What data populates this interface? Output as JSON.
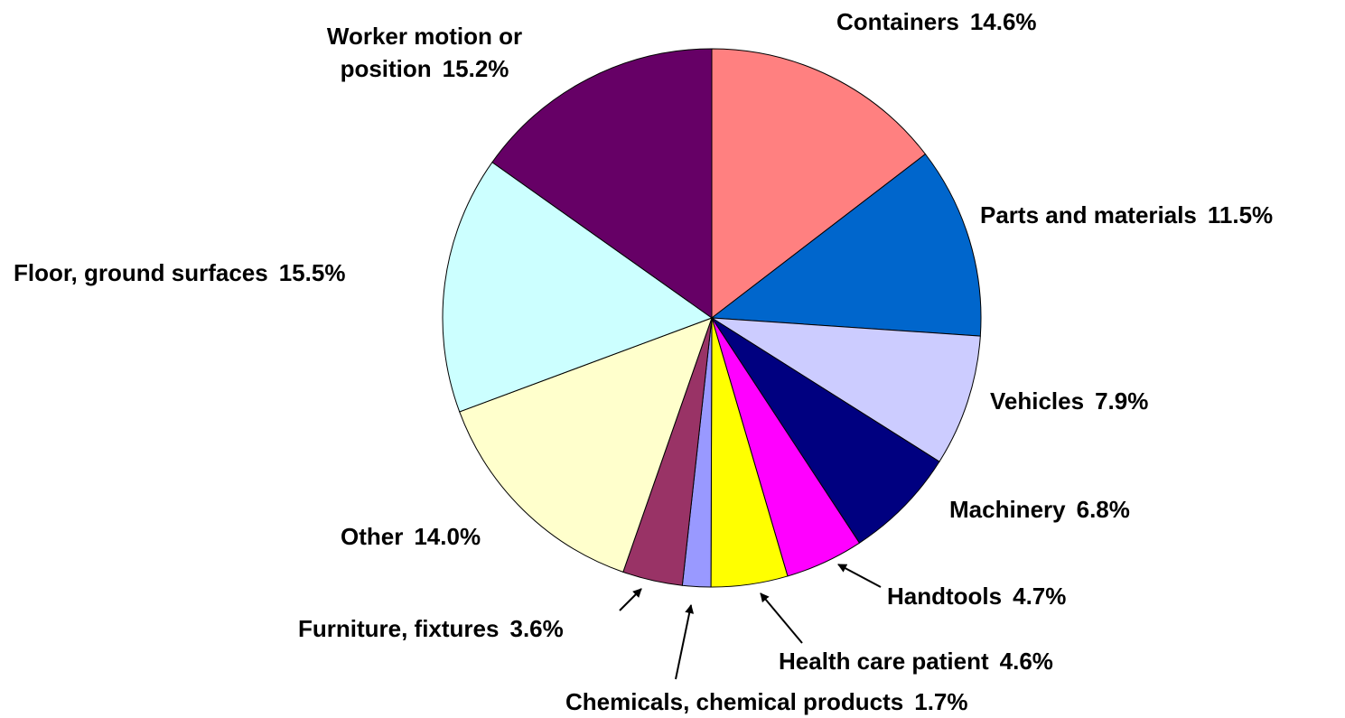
{
  "chart_data": {
    "type": "pie",
    "categories": [
      "Containers",
      "Parts and materials",
      "Vehicles",
      "Machinery",
      "Handtools",
      "Health care patient",
      "Chemicals, chemical products",
      "Furniture, fixtures",
      "Other",
      "Floor, ground surfaces",
      "Worker motion or position"
    ],
    "values": [
      14.6,
      11.5,
      7.9,
      6.8,
      4.7,
      4.6,
      1.7,
      3.6,
      14.0,
      15.5,
      15.2
    ],
    "value_labels": [
      "14.6%",
      "11.5%",
      "7.9%",
      "6.8%",
      "4.7%",
      "4.6%",
      "1.7%",
      "3.6%",
      "14.0%",
      "15.5%",
      "15.2%"
    ],
    "colors": [
      "#FF8080",
      "#0066CC",
      "#CCCCFF",
      "#000080",
      "#FF00FF",
      "#FFFF00",
      "#9999FF",
      "#993366",
      "#FFFFCC",
      "#CCFFFF",
      "#660066"
    ]
  }
}
